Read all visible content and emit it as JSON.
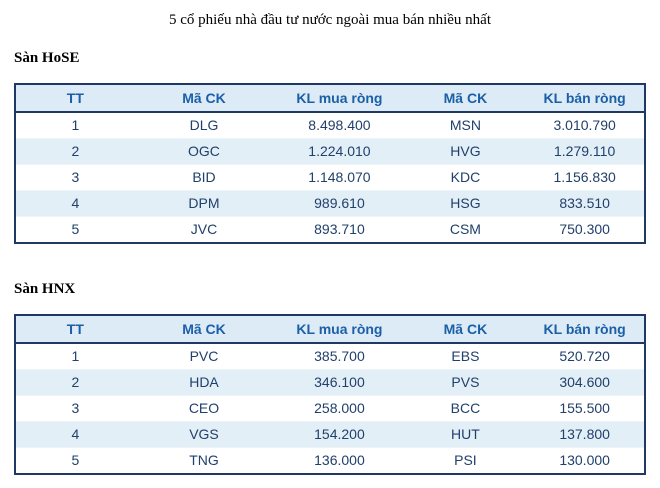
{
  "page": {
    "title": "5 cổ phiếu nhà đầu tư nước ngoài mua bán nhiều nhất"
  },
  "colors": {
    "table_border": "#1f3864",
    "header_bg": "#dcebf5",
    "header_text": "#1b5fa8",
    "row_alt_bg": "#e3eff7",
    "body_text": "#21406b"
  },
  "tables": [
    {
      "section_title": "Sàn HoSE",
      "columns": [
        "TT",
        "Mã CK",
        "KL mua ròng",
        "Mã CK",
        "KL bán ròng"
      ],
      "rows": [
        [
          "1",
          "DLG",
          "8.498.400",
          "MSN",
          "3.010.790"
        ],
        [
          "2",
          "OGC",
          "1.224.010",
          "HVG",
          "1.279.110"
        ],
        [
          "3",
          "BID",
          "1.148.070",
          "KDC",
          "1.156.830"
        ],
        [
          "4",
          "DPM",
          "989.610",
          "HSG",
          "833.510"
        ],
        [
          "5",
          "JVC",
          "893.710",
          "CSM",
          "750.300"
        ]
      ]
    },
    {
      "section_title": "Sàn HNX",
      "columns": [
        "TT",
        "Mã CK",
        "KL mua ròng",
        "Mã CK",
        "KL bán ròng"
      ],
      "rows": [
        [
          "1",
          "PVC",
          "385.700",
          "EBS",
          "520.720"
        ],
        [
          "2",
          "HDA",
          "346.100",
          "PVS",
          "304.600"
        ],
        [
          "3",
          "CEO",
          "258.000",
          "BCC",
          "155.500"
        ],
        [
          "4",
          "VGS",
          "154.200",
          "HUT",
          "137.800"
        ],
        [
          "5",
          "TNG",
          "136.000",
          "PSI",
          "130.000"
        ]
      ]
    }
  ]
}
